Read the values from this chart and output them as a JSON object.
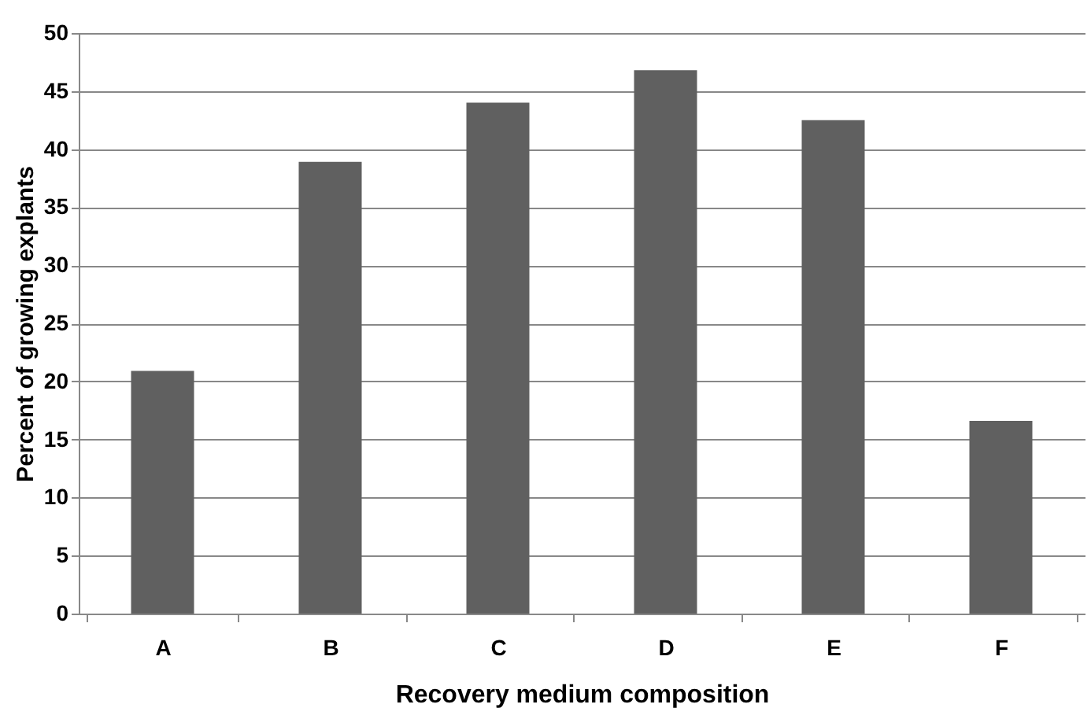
{
  "chart_data": {
    "type": "bar",
    "xlabel": "Recovery medium composition",
    "ylabel": "Percent of growing explants",
    "categories": [
      "A",
      "B",
      "C",
      "D",
      "E",
      "F"
    ],
    "values": [
      20.9,
      38.9,
      44.0,
      46.8,
      42.5,
      16.6
    ],
    "color": "#606060",
    "ylim": [
      0,
      50
    ],
    "yticks": [
      0,
      5,
      10,
      15,
      20,
      25,
      30,
      35,
      40,
      45,
      50
    ],
    "grid": "y"
  }
}
